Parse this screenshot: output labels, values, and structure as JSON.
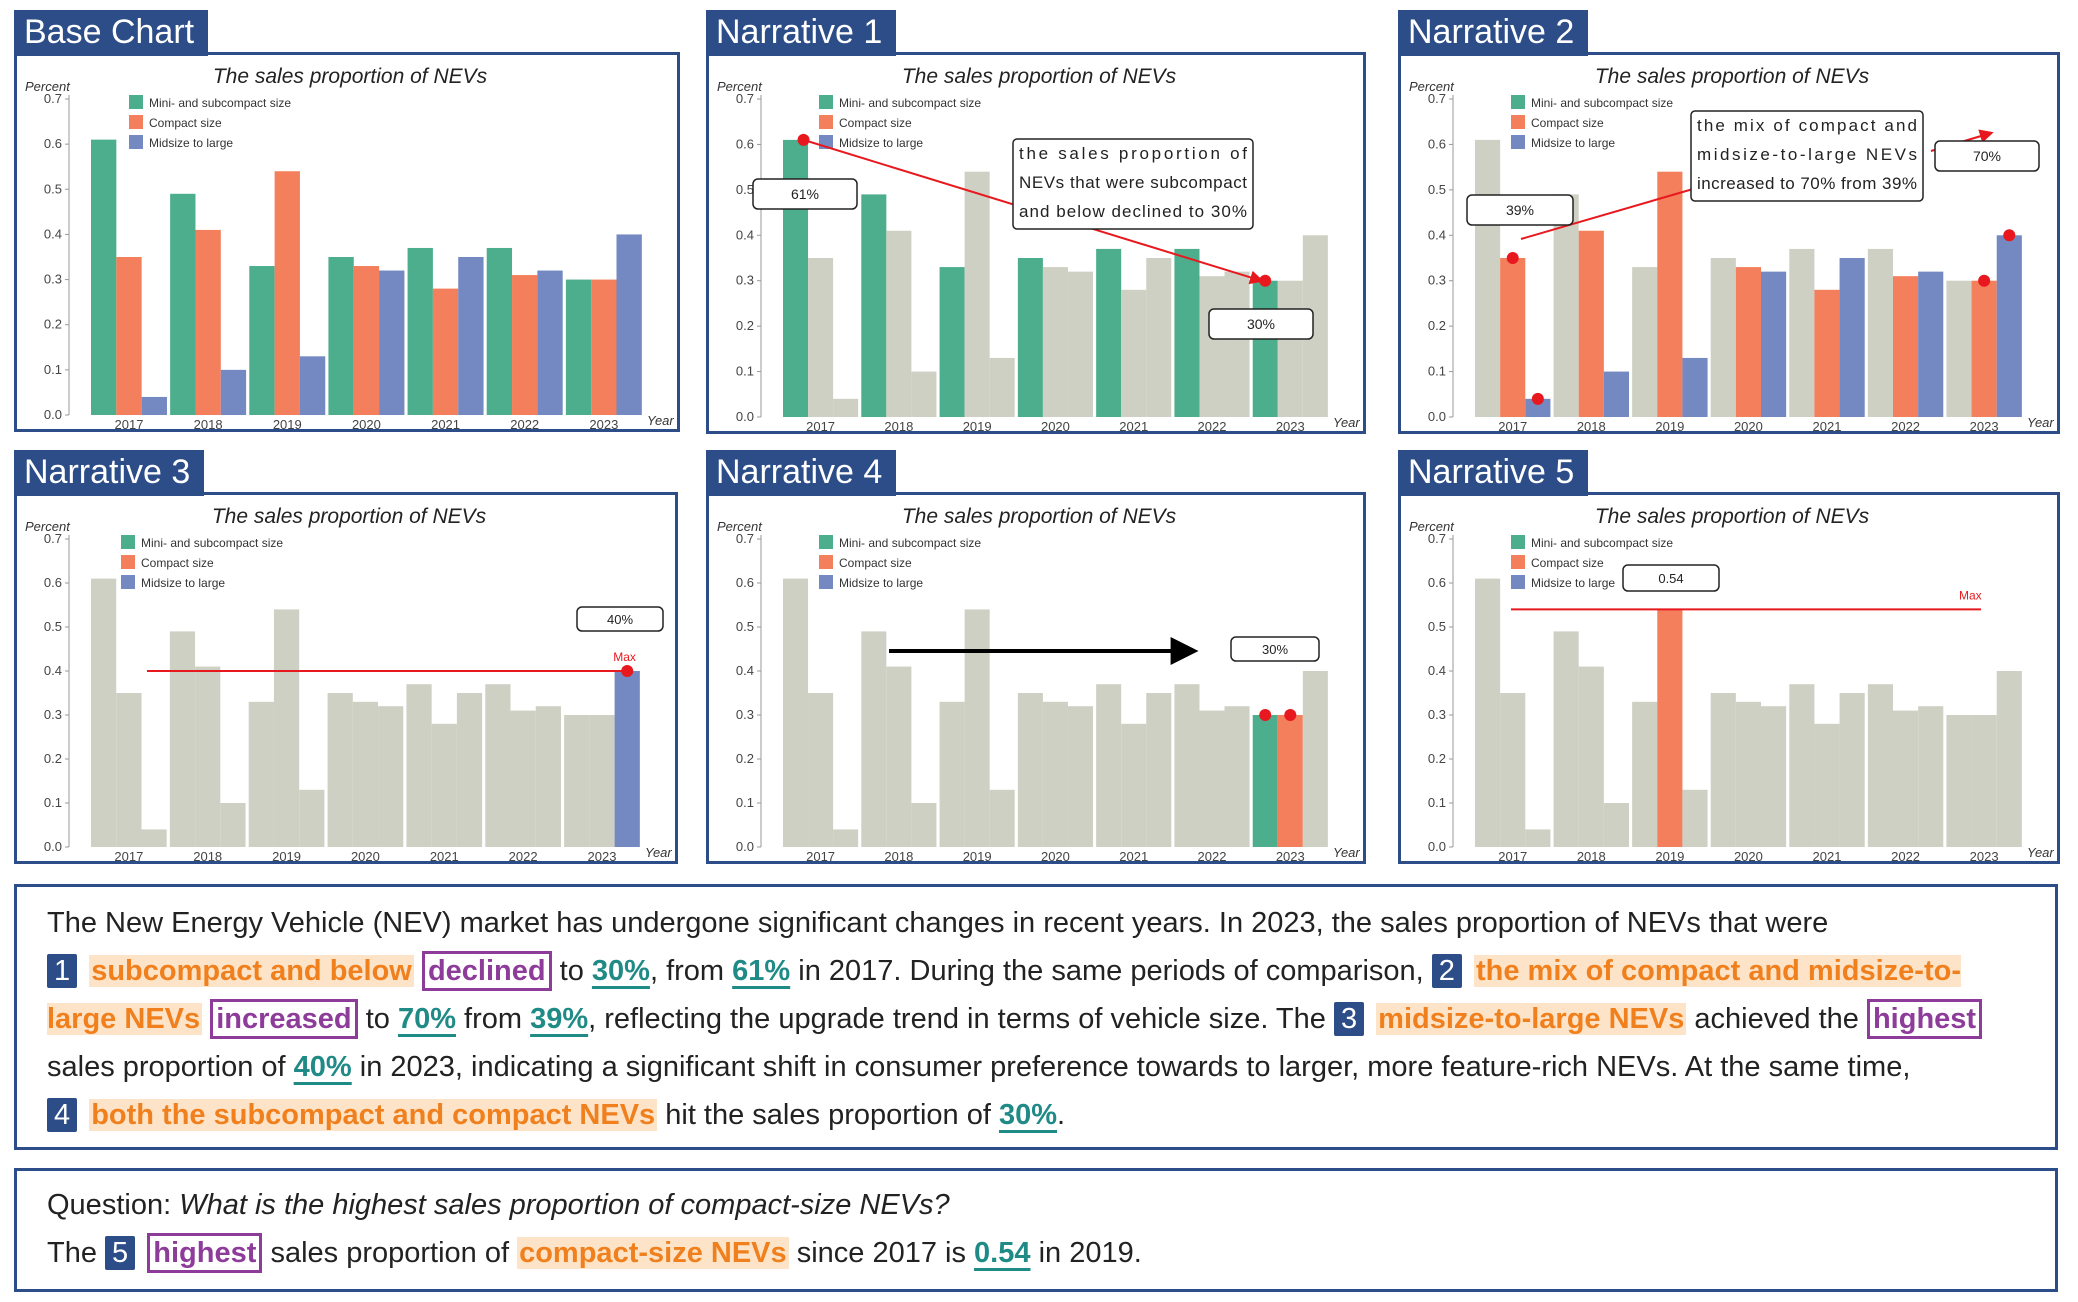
{
  "colors": {
    "mini": "#4cae8c",
    "compact": "#f37f5c",
    "midsize": "#7489c1",
    "grey": "#cfd0c4",
    "panel_border": "#2c4d87",
    "marker": "#e8191e",
    "subject": "#f0801e",
    "verb": "#8e3c9a",
    "value": "#1f8a86"
  },
  "chart_data": {
    "type": "bar",
    "title": "The sales proportion of NEVs",
    "ylabel": "Percent",
    "xlabel": "Year",
    "ylim": [
      0,
      0.7
    ],
    "yticks": [
      "0.0",
      "0.1",
      "0.2",
      "0.3",
      "0.4",
      "0.5",
      "0.6",
      "0.7"
    ],
    "categories": [
      "2017",
      "2018",
      "2019",
      "2020",
      "2021",
      "2022",
      "2023"
    ],
    "series": [
      {
        "name": "Mini- and subcompact size",
        "values": [
          0.61,
          0.49,
          0.33,
          0.35,
          0.37,
          0.37,
          0.3
        ]
      },
      {
        "name": "Compact size",
        "values": [
          0.35,
          0.41,
          0.54,
          0.33,
          0.28,
          0.31,
          0.3
        ]
      },
      {
        "name": "Midsize to large",
        "values": [
          0.04,
          0.1,
          0.13,
          0.32,
          0.35,
          0.32,
          0.4
        ]
      }
    ],
    "legend_position": "top-left"
  },
  "panels": [
    {
      "title": "Base Chart"
    },
    {
      "title": "Narrative 1",
      "annotation": "the sales proportion of NEVs that were subcompact and below declined to 30%",
      "labels": [
        "61%",
        "30%"
      ]
    },
    {
      "title": "Narrative 2",
      "annotation": "the mix of compact and midsize-to-large NEVs increased to 70% from 39%",
      "labels": [
        "39%",
        "70%"
      ]
    },
    {
      "title": "Narrative 3",
      "labels": [
        "40%"
      ],
      "max_label": "Max"
    },
    {
      "title": "Narrative 4",
      "labels": [
        "30%"
      ]
    },
    {
      "title": "Narrative 5",
      "labels": [
        "0.54"
      ],
      "max_label": "Max"
    }
  ],
  "narrative": {
    "intro": "The New Energy Vehicle (NEV) market has undergone significant changes in recent years. In 2023, the sales proportion of NEVs that were",
    "n1": "1",
    "s1": "subcompact and below",
    "v1": "declined",
    "t1": "to",
    "val1a": "30%",
    "t2": ", from",
    "val1b": "61%",
    "t3": "in 2017. During the same periods of comparison,",
    "n2": "2",
    "s2": "the mix of compact and midsize-to-large NEVs",
    "v2": "increased",
    "t4": "to",
    "val2a": "70%",
    "t5": "from",
    "val2b": "39%",
    "t6": ", reflecting the upgrade trend in terms of vehicle size. The",
    "n3": "3",
    "s3": "midsize-to-large NEVs",
    "t7": "achieved the",
    "v3": "highest",
    "t8": "sales proportion of",
    "val3": "40%",
    "t9": "in 2023, indicating a significant shift in consumer preference towards to larger, more feature-rich NEVs. At the same time,",
    "n4": "4",
    "s4": "both the subcompact and compact NEVs",
    "t10": "hit the sales proportion of",
    "val4": "30%",
    "t11": "."
  },
  "question": {
    "label": "Question:",
    "text": "What is the highest sales proportion of compact-size NEVs?",
    "a1": "The",
    "n5": "5",
    "v5": "highest",
    "a2": "sales proportion of",
    "s5": "compact-size NEVs",
    "a3": "since 2017 is",
    "val5": "0.54",
    "a4": "in 2019."
  }
}
